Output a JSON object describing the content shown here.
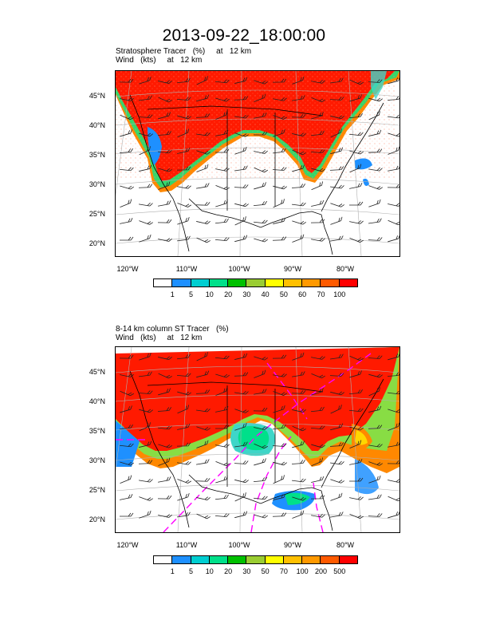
{
  "title": "2013-09-22_18:00:00",
  "panels": [
    {
      "subtitle_line1": "Stratosphere Tracer   (%)     at   12 km",
      "subtitle_line2": "Wind   (kts)     at   12 km",
      "lat_labels": [
        "45°N",
        "40°N",
        "35°N",
        "30°N",
        "25°N",
        "20°N"
      ],
      "lon_labels": [
        "120°W",
        "110°W",
        "100°W",
        "90°W",
        "80°W"
      ],
      "colorbar": {
        "colors": [
          "#ffffff",
          "#1e90ff",
          "#00ced1",
          "#00e08a",
          "#00c000",
          "#9acd32",
          "#ffff00",
          "#ffc000",
          "#ff9900",
          "#ff5a00",
          "#ff0000"
        ],
        "labels": [
          "1",
          "5",
          "10",
          "20",
          "30",
          "40",
          "50",
          "60",
          "70",
          "100"
        ]
      }
    },
    {
      "subtitle_line1": "8-14 km column ST Tracer   (%)",
      "subtitle_line2": "Wind   (kts)     at   12 km",
      "lat_labels": [
        "45°N",
        "40°N",
        "35°N",
        "30°N",
        "25°N",
        "20°N"
      ],
      "lon_labels": [
        "120°W",
        "110°W",
        "100°W",
        "90°W",
        "80°W"
      ],
      "colorbar": {
        "colors": [
          "#ffffff",
          "#1e90ff",
          "#00ced1",
          "#00e08a",
          "#00c000",
          "#9acd32",
          "#ffff00",
          "#ffc000",
          "#ff9900",
          "#ff5a00",
          "#ff0000"
        ],
        "labels": [
          "1",
          "5",
          "10",
          "20",
          "30",
          "50",
          "70",
          "100",
          "200",
          "500"
        ]
      }
    }
  ]
}
